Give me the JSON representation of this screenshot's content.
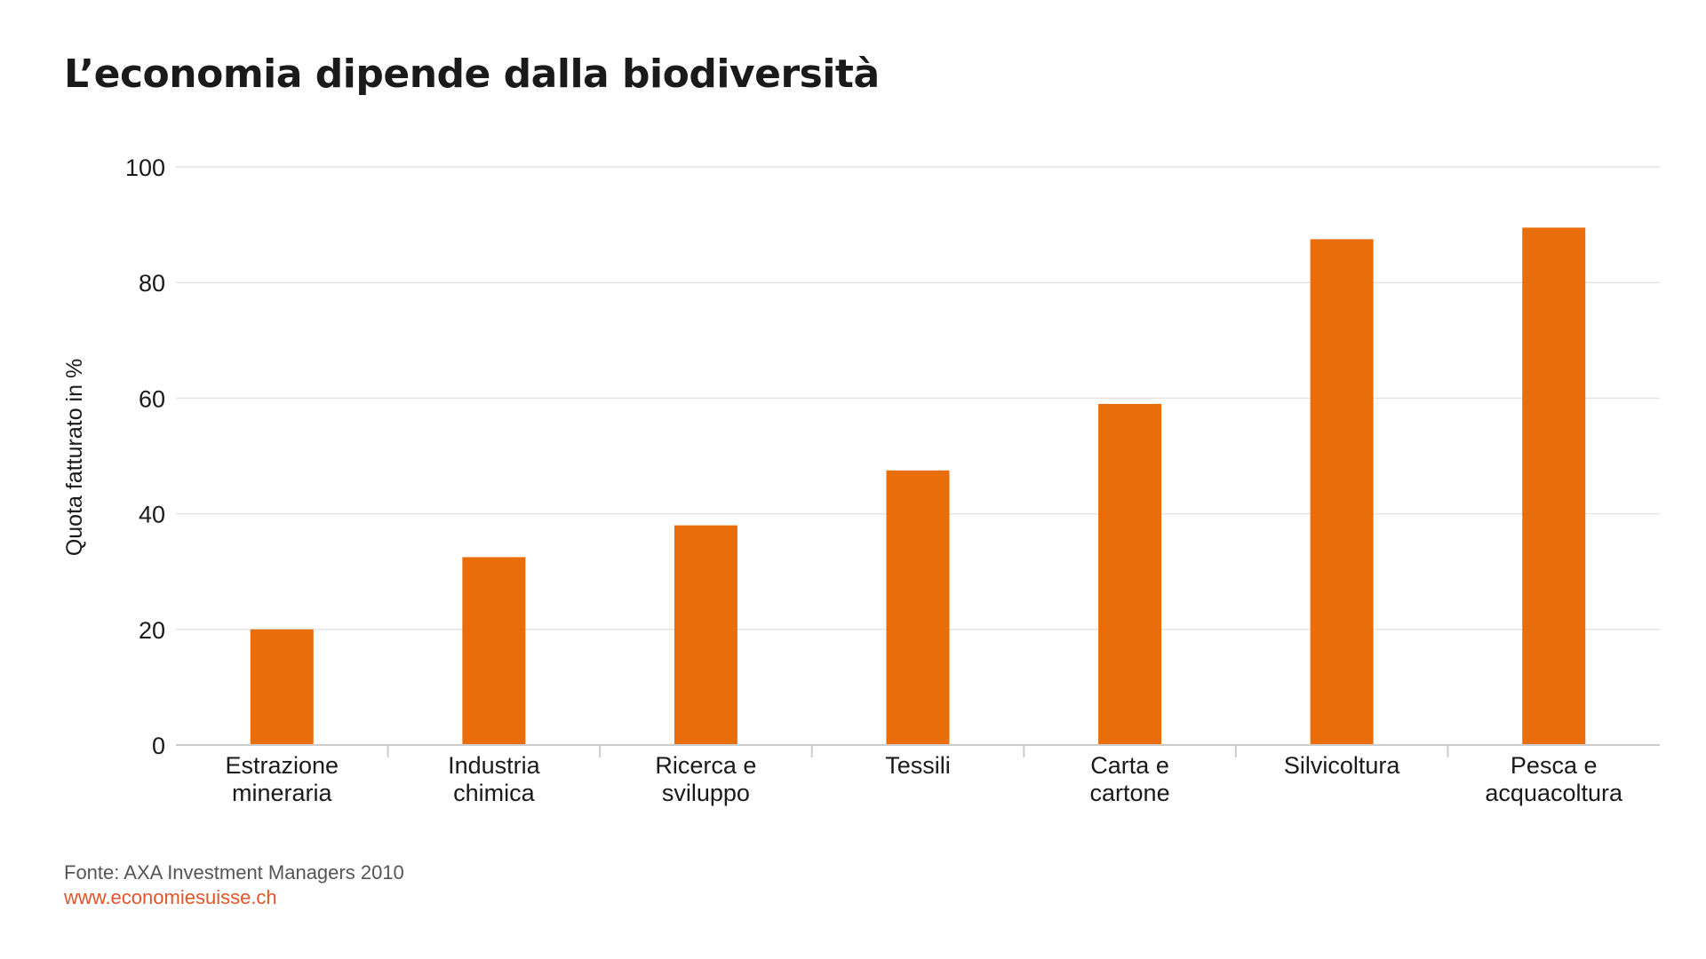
{
  "title": "L’economia dipende dalla biodiversità",
  "chart_data": {
    "type": "bar",
    "categories": [
      [
        "Estrazione",
        "mineraria"
      ],
      [
        "Industria",
        "chimica"
      ],
      [
        "Ricerca e",
        "sviluppo"
      ],
      [
        "Tessili"
      ],
      [
        "Carta e",
        "cartone"
      ],
      [
        "Silvicoltura"
      ],
      [
        "Pesca e",
        "acquacoltura"
      ]
    ],
    "values": [
      20,
      32.5,
      38,
      47.5,
      59,
      87.5,
      89.5
    ],
    "ylabel": "Quota fatturato in %",
    "xlabel": "",
    "ylim": [
      0,
      100
    ],
    "yticks": [
      0,
      20,
      40,
      60,
      80,
      100
    ],
    "grid": true,
    "bar_color": "#e96e0b",
    "grid_color": "#e4e4e4",
    "axis_color": "#cccccc"
  },
  "footer": {
    "source": "Fonte: AXA Investment Managers 2010",
    "url": "www.economiesuisse.ch"
  }
}
